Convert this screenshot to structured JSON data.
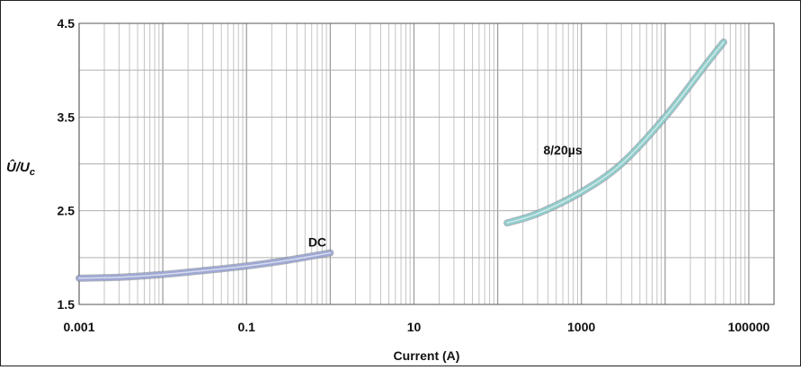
{
  "chart_data": {
    "type": "line",
    "title": "",
    "xlabel": "Current (A)",
    "ylabel_main": "Û/U",
    "ylabel_sub": "c",
    "x_scale": "log",
    "xlim": [
      0.001,
      200000
    ],
    "ylim": [
      1.5,
      4.5
    ],
    "x_ticks": [
      0.001,
      0.1,
      10,
      1000,
      100000
    ],
    "x_tick_labels": [
      "0.001",
      "0.1",
      "10",
      "1000",
      "100000"
    ],
    "y_ticks": [
      1.5,
      2.5,
      3.5,
      4.5
    ],
    "y_tick_labels": [
      "1.5",
      "2.5",
      "3.5",
      "4.5"
    ],
    "grid": true,
    "series": [
      {
        "name": "DC",
        "color": "#9ea8d4",
        "x": [
          0.001,
          0.003,
          0.01,
          0.03,
          0.1,
          0.3,
          1.0
        ],
        "y": [
          1.78,
          1.79,
          1.82,
          1.86,
          1.91,
          1.97,
          2.05
        ]
      },
      {
        "name": "8/20µs",
        "color": "#8fcdcb",
        "x": [
          130,
          300,
          1000,
          3000,
          10000,
          30000,
          50000
        ],
        "y": [
          2.37,
          2.47,
          2.7,
          3.0,
          3.5,
          4.05,
          4.3
        ]
      }
    ],
    "annotations": [
      {
        "text": "DC",
        "x": 0.7,
        "y": 2.12
      },
      {
        "text": "8/20µs",
        "x": 600,
        "y": 3.1
      }
    ]
  }
}
